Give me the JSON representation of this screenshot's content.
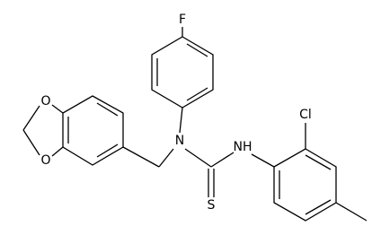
{
  "nodes": [
    {
      "label": "F"
    },
    {
      "label": "N"
    },
    {
      "label": "NH"
    },
    {
      "label": "S"
    },
    {
      "label": "Cl"
    },
    {
      "label": "O"
    },
    {
      "label": "O"
    }
  ]
}
